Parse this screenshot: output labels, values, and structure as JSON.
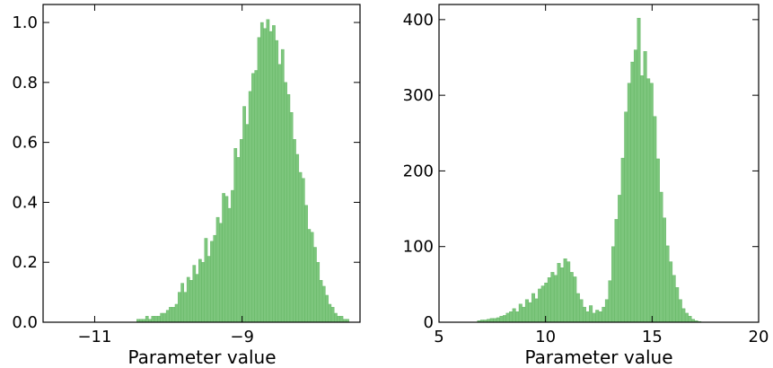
{
  "chart_data": [
    {
      "type": "histogram",
      "xlabel": "Parameter value",
      "ylabel": "",
      "xlim": [
        -11.7,
        -7.4
      ],
      "ylim": [
        0,
        1.06
      ],
      "xticks": [
        -11,
        -9
      ],
      "xtick_labels": [
        "−11",
        "−9"
      ],
      "yticks": [
        0,
        0.2,
        0.4,
        0.6,
        0.8,
        1.0
      ],
      "ytick_labels": [
        "0.0",
        "0.2",
        "0.4",
        "0.6",
        "0.8",
        "1.0"
      ],
      "bar_color": "#7dc67d",
      "edge_color": "#5fb35f",
      "bins": {
        "start": -10.55,
        "width": 0.04,
        "values": [
          0.0,
          0.0,
          0.0,
          0.01,
          0.01,
          0.01,
          0.02,
          0.01,
          0.02,
          0.02,
          0.02,
          0.03,
          0.03,
          0.04,
          0.05,
          0.05,
          0.06,
          0.1,
          0.13,
          0.1,
          0.15,
          0.14,
          0.19,
          0.16,
          0.21,
          0.2,
          0.28,
          0.22,
          0.27,
          0.29,
          0.35,
          0.33,
          0.43,
          0.42,
          0.38,
          0.44,
          0.58,
          0.55,
          0.61,
          0.72,
          0.66,
          0.77,
          0.83,
          0.84,
          0.95,
          1.0,
          0.98,
          1.01,
          0.97,
          0.99,
          0.94,
          0.86,
          0.91,
          0.8,
          0.76,
          0.7,
          0.61,
          0.56,
          0.5,
          0.48,
          0.39,
          0.31,
          0.3,
          0.25,
          0.2,
          0.14,
          0.12,
          0.09,
          0.06,
          0.05,
          0.03,
          0.02,
          0.02,
          0.01,
          0.01,
          0.0
        ]
      }
    },
    {
      "type": "histogram",
      "xlabel": "Parameter value",
      "ylabel": "",
      "xlim": [
        5,
        20
      ],
      "ylim": [
        0,
        420
      ],
      "xticks": [
        5,
        10,
        15,
        20
      ],
      "xtick_labels": [
        "5",
        "10",
        "15",
        "20"
      ],
      "yticks": [
        0,
        100,
        200,
        300,
        400
      ],
      "ytick_labels": [
        "0",
        "100",
        "200",
        "300",
        "400"
      ],
      "bar_color": "#7dc67d",
      "edge_color": "#5fb35f",
      "bins": {
        "start": 5.6,
        "width": 0.15,
        "values": [
          0,
          0,
          0,
          0,
          0,
          0,
          0,
          0,
          2,
          3,
          3,
          4,
          5,
          5,
          6,
          8,
          9,
          12,
          14,
          18,
          14,
          24,
          20,
          30,
          26,
          38,
          31,
          44,
          48,
          52,
          59,
          66,
          62,
          78,
          72,
          84,
          80,
          66,
          60,
          38,
          30,
          20,
          14,
          22,
          12,
          16,
          14,
          20,
          30,
          55,
          100,
          136,
          168,
          217,
          278,
          316,
          344,
          360,
          402,
          326,
          358,
          322,
          316,
          272,
          216,
          172,
          138,
          101,
          80,
          62,
          46,
          30,
          18,
          12,
          8,
          4,
          2,
          1,
          0,
          0,
          0,
          0,
          0,
          0,
          0,
          0,
          0,
          0,
          0
        ]
      }
    }
  ]
}
